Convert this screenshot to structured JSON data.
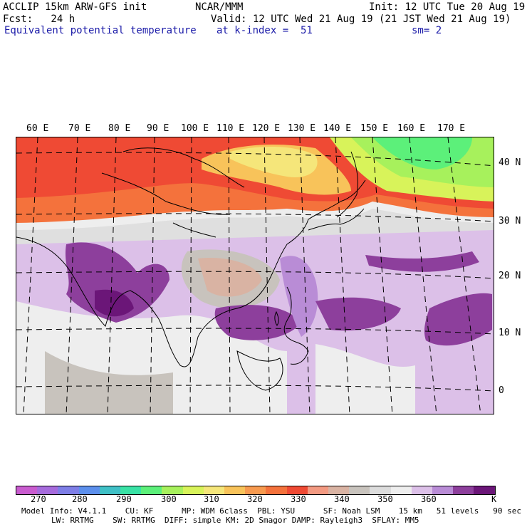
{
  "header": {
    "line1_left": "ACCLIP 15km ARW-GFS init",
    "line1_center": "NCAR/MMM",
    "line1_right": "Init: 12 UTC Tue 20 Aug 19",
    "line2_left": "Fcst:   24 h",
    "line2_right": "Valid: 12 UTC Wed 21 Aug 19 (21 JST Wed 21 Aug 19)",
    "line3_left": "Equivalent potential temperature",
    "line3_center": "at k-index =  51",
    "line3_right": "sm= 2"
  },
  "map": {
    "longitude_labels": [
      "60 E",
      "70 E",
      "80 E",
      "90 E",
      "100 E",
      "110 E",
      "120 E",
      "130 E",
      "140 E",
      "150 E",
      "160 E",
      "170 E"
    ],
    "latitude_labels": [
      "40 N",
      "30 N",
      "20 N",
      "10 N",
      "0"
    ]
  },
  "colorbar": {
    "unit": "K",
    "tick_labels": [
      "270",
      "280",
      "290",
      "300",
      "310",
      "320",
      "330",
      "340",
      "350",
      "360"
    ],
    "colors": [
      "#c95ccf",
      "#a66bdc",
      "#7e7ee6",
      "#5c8fec",
      "#3fc0c6",
      "#39e2a5",
      "#5cf07a",
      "#a7f15c",
      "#d8f35a",
      "#f5e67a",
      "#f8c35a",
      "#f79a4f",
      "#f4723c",
      "#ef4a34",
      "#f39a82",
      "#d9b3a3",
      "#c8c3bd",
      "#dcdcdc",
      "#eeeeee",
      "#dcc0e8",
      "#b98cd6",
      "#8d3f9c",
      "#6b1678"
    ]
  },
  "footer": {
    "line1": "Model Info: V4.1.1    CU: KF      MP: WDM 6class  PBL: YSU      SF: Noah LSM    15 km   51 levels   90 sec",
    "line2": "LW: RRTMG    SW: RRTMG  DIFF: simple KM: 2D Smagor DAMP: Rayleigh3  SFLAY: MM5"
  }
}
